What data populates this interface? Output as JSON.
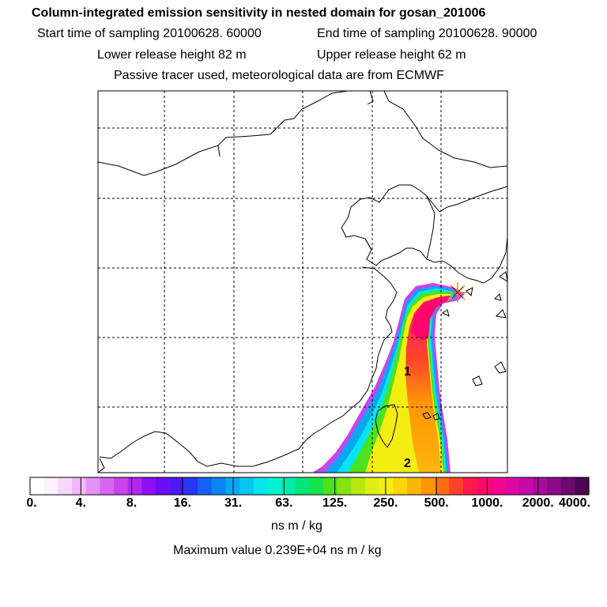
{
  "header": {
    "title": "Column-integrated emission sensitivity in nested domain for gosan_201006",
    "start_label": "Start time of sampling 20100628. 60000",
    "end_label": "End time of sampling 20100628. 90000",
    "lower_release": "Lower release height   82 m",
    "upper_release": "Upper release height   62 m",
    "note": "Passive tracer used, meteorological data are from ECMWF"
  },
  "map": {
    "labels": [
      "1",
      "2"
    ],
    "receptor": "receptor-star-icon",
    "grid": true
  },
  "colorbar": {
    "ticks": [
      "0.",
      "4.",
      "8.",
      "16.",
      "31.",
      "63.",
      "125.",
      "250.",
      "500.",
      "1000.",
      "2000.",
      "4000."
    ],
    "colors": [
      "#ffffff",
      "#fdf0ff",
      "#f7d8fb",
      "#efbaf7",
      "#e590f3",
      "#d865ef",
      "#c844ee",
      "#b226ef",
      "#8e10f2",
      "#6c0df3",
      "#4c18f4",
      "#2a34f6",
      "#1661f5",
      "#0b86f2",
      "#0aa7f1",
      "#08c6ef",
      "#06e4ee",
      "#00f2d0",
      "#00ecaa",
      "#00e57c",
      "#16e34a",
      "#4de21e",
      "#86e40e",
      "#b8e811",
      "#ddef14",
      "#f4ed12",
      "#fbd40c",
      "#fcb60a",
      "#fd9508",
      "#ff6c14",
      "#ff402a",
      "#ff1a4a",
      "#ff086e",
      "#f0078e",
      "#dd08a4",
      "#c40aa8",
      "#a80b9c",
      "#8c0a8a",
      "#6c0870",
      "#4e0452"
    ],
    "unit": "ns m / kg",
    "max_value": "Maximum value  0.239E+04 ns m / kg"
  }
}
